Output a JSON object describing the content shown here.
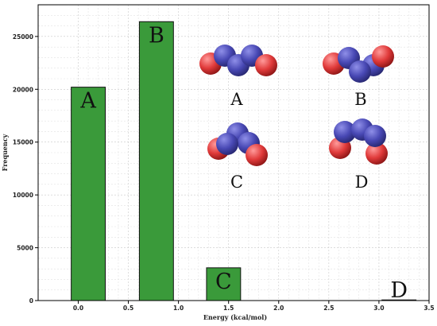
{
  "chart_data": {
    "type": "bar",
    "xlabel": "Energy (kcal/mol)",
    "ylabel": "Frequency",
    "xlim": [
      -0.4,
      3.5
    ],
    "ylim": [
      0,
      28000
    ],
    "xticks": [
      "0.0",
      "0.5",
      "1.0",
      "1.5",
      "2.0",
      "2.5",
      "3.0",
      "3.5"
    ],
    "yticks": [
      "0",
      "5000",
      "10000",
      "15000",
      "20000",
      "25000"
    ],
    "grid": true,
    "bar_color": "#3a9a3a",
    "bars": [
      {
        "label": "A",
        "x": 0.1,
        "value": 20200
      },
      {
        "label": "B",
        "x": 0.78,
        "value": 26400
      },
      {
        "label": "C",
        "x": 1.45,
        "value": 3100
      },
      {
        "label": "D",
        "x": 3.2,
        "value": 60
      }
    ]
  },
  "molecules": [
    {
      "label": "A",
      "shape": "zigzag-trans"
    },
    {
      "label": "B",
      "shape": "zigzag-twisted"
    },
    {
      "label": "C",
      "shape": "cis-folded"
    },
    {
      "label": "D",
      "shape": "cis-bent"
    }
  ],
  "atom_colors": {
    "nitrogen": "#4a4ab8",
    "oxygen": "#e03a3a"
  }
}
